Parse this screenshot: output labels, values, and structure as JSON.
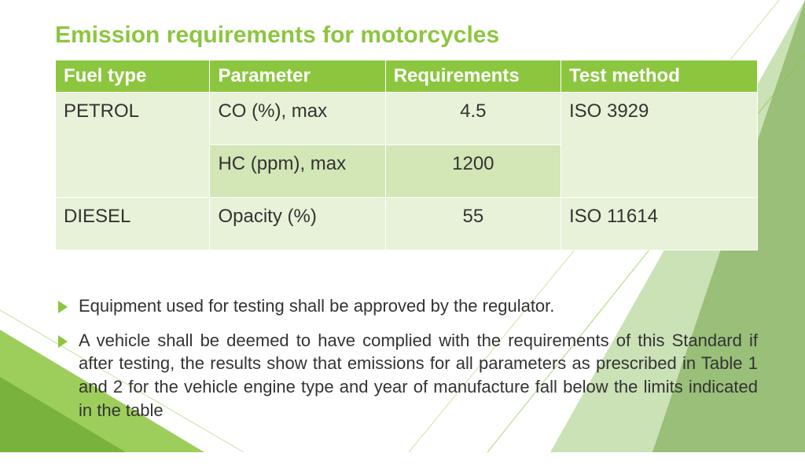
{
  "title": "Emission requirements for motorcycles",
  "colors": {
    "accent": "#8cc63f",
    "header_bg": "#8cc63f",
    "header_text": "#ffffff",
    "row_alt1": "#e8f2d8",
    "row_alt2": "#d3e6b6",
    "text": "#333333",
    "bullet": "#8cc63f",
    "title_color": "#8cc63f"
  },
  "table": {
    "columns": [
      "Fuel type",
      "Parameter",
      "Requirements",
      "Test method"
    ],
    "col_widths_pct": [
      22,
      25,
      25,
      28
    ],
    "rows": [
      {
        "fuel": "PETROL",
        "param": "CO (%), max",
        "req": "4.5",
        "test": "ISO 3929",
        "fuel_rowspan": 2,
        "test_rowspan": 2,
        "bg": "#e8f2d8"
      },
      {
        "param": "HC (ppm), max",
        "req": "1200",
        "bg": "#d3e6b6"
      },
      {
        "fuel": "DIESEL",
        "param": "Opacity (%)",
        "req": "55",
        "test": "ISO 11614",
        "bg": "#e8f2d8"
      }
    ]
  },
  "bullets": [
    "Equipment used for testing shall be approved by the regulator.",
    "A vehicle shall be deemed to have complied with the requirements of this Standard if after testing, the results show that emissions for all parameters as prescribed in Table 1 and 2 for the vehicle engine type and year of manufacture fall below the limits indicated in the table"
  ]
}
